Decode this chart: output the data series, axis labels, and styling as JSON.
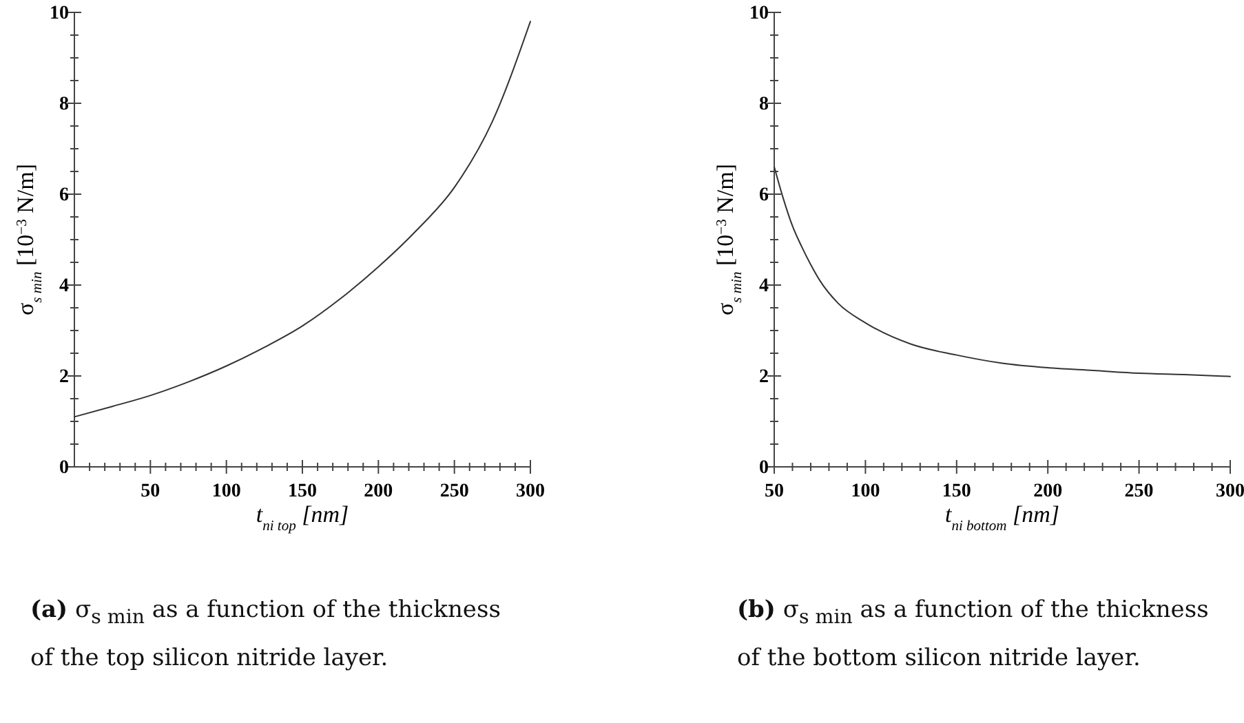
{
  "chart_data": [
    {
      "type": "line",
      "xlabel": "t$_{ni top}$ [nm]",
      "ylabel": "σ$_{s min}$   [10$^{−3}$ N/m]",
      "xlim": [
        0,
        300
      ],
      "ylim": [
        0,
        10
      ],
      "xticks": [
        {
          "value": 10,
          "label": null
        },
        {
          "value": 20,
          "label": null
        },
        {
          "value": 30,
          "label": null
        },
        {
          "value": 40,
          "label": null
        },
        50,
        {
          "value": 60,
          "label": null
        },
        {
          "value": 70,
          "label": null
        },
        {
          "value": 80,
          "label": null
        },
        {
          "value": 90,
          "label": null
        },
        100,
        {
          "value": 110,
          "label": null
        },
        {
          "value": 120,
          "label": null
        },
        {
          "value": 130,
          "label": null
        },
        {
          "value": 140,
          "label": null
        },
        150,
        {
          "value": 160,
          "label": null
        },
        {
          "value": 170,
          "label": null
        },
        {
          "value": 180,
          "label": null
        },
        {
          "value": 190,
          "label": null
        },
        200,
        {
          "value": 210,
          "label": null
        },
        {
          "value": 220,
          "label": null
        },
        {
          "value": 230,
          "label": null
        },
        {
          "value": 240,
          "label": null
        },
        250,
        {
          "value": 260,
          "label": null
        },
        {
          "value": 270,
          "label": null
        },
        {
          "value": 280,
          "label": null
        },
        {
          "value": 290,
          "label": null
        },
        300
      ],
      "yticks": [
        0,
        {
          "value": 0.5,
          "label": null
        },
        {
          "value": 1,
          "label": null
        },
        {
          "value": 1.5,
          "label": null
        },
        2,
        {
          "value": 2.5,
          "label": null
        },
        {
          "value": 3,
          "label": null
        },
        {
          "value": 3.5,
          "label": null
        },
        4,
        {
          "value": 4.5,
          "label": null
        },
        {
          "value": 5,
          "label": null
        },
        {
          "value": 5.5,
          "label": null
        },
        6,
        {
          "value": 6.5,
          "label": null
        },
        {
          "value": 7,
          "label": null
        },
        {
          "value": 7.5,
          "label": null
        },
        8,
        {
          "value": 8.5,
          "label": null
        },
        {
          "value": 9,
          "label": null
        },
        {
          "value": 9.5,
          "label": null
        },
        10
      ],
      "grid": false,
      "series": [
        {
          "color": "#333333",
          "x": [
            0,
            25,
            50,
            75,
            100,
            125,
            150,
            175,
            200,
            225,
            250,
            275,
            300
          ],
          "values": [
            1.1,
            1.33,
            1.57,
            1.87,
            2.22,
            2.63,
            3.1,
            3.7,
            4.4,
            5.2,
            6.15,
            7.6,
            9.8
          ]
        }
      ],
      "annotations": [
        "(a) σ$_{s min}$ as a function of the thickness of the top silicon nitride layer."
      ]
    },
    {
      "type": "line",
      "xlabel": "t$_{ni bottom}$   [nm]",
      "ylabel": "σ$_{s min}$   [10$^{−3}$ N/m]",
      "xlim": [
        50,
        300
      ],
      "ylim": [
        0,
        10
      ],
      "xticks": [
        50,
        {
          "value": 60,
          "label": null
        },
        {
          "value": 70,
          "label": null
        },
        {
          "value": 80,
          "label": null
        },
        {
          "value": 90,
          "label": null
        },
        100,
        {
          "value": 110,
          "label": null
        },
        {
          "value": 120,
          "label": null
        },
        {
          "value": 130,
          "label": null
        },
        {
          "value": 140,
          "label": null
        },
        150,
        {
          "value": 160,
          "label": null
        },
        {
          "value": 170,
          "label": null
        },
        {
          "value": 180,
          "label": null
        },
        {
          "value": 190,
          "label": null
        },
        200,
        {
          "value": 210,
          "label": null
        },
        {
          "value": 220,
          "label": null
        },
        {
          "value": 230,
          "label": null
        },
        {
          "value": 240,
          "label": null
        },
        250,
        {
          "value": 260,
          "label": null
        },
        {
          "value": 270,
          "label": null
        },
        {
          "value": 280,
          "label": null
        },
        {
          "value": 290,
          "label": null
        },
        300
      ],
      "yticks": [
        0,
        {
          "value": 0.5,
          "label": null
        },
        {
          "value": 1,
          "label": null
        },
        {
          "value": 1.5,
          "label": null
        },
        2,
        {
          "value": 2.5,
          "label": null
        },
        {
          "value": 3,
          "label": null
        },
        {
          "value": 3.5,
          "label": null
        },
        4,
        {
          "value": 4.5,
          "label": null
        },
        {
          "value": 5,
          "label": null
        },
        {
          "value": 5.5,
          "label": null
        },
        6,
        {
          "value": 6.5,
          "label": null
        },
        {
          "value": 7,
          "label": null
        },
        {
          "value": 7.5,
          "label": null
        },
        8,
        {
          "value": 8.5,
          "label": null
        },
        {
          "value": 9,
          "label": null
        },
        {
          "value": 9.5,
          "label": null
        },
        10
      ],
      "grid": false,
      "series": [
        {
          "color": "#333333",
          "x": [
            50,
            55,
            60,
            65,
            70,
            75,
            85,
            100,
            125,
            150,
            175,
            200,
            225,
            250,
            275,
            300
          ],
          "values": [
            6.6,
            5.9,
            5.3,
            4.85,
            4.45,
            4.1,
            3.6,
            3.17,
            2.7,
            2.46,
            2.28,
            2.18,
            2.12,
            2.06,
            2.03,
            1.99
          ]
        }
      ],
      "annotations": [
        "(b) σ$_{s min}$ as a function of the thickness of the bottom silicon nitride layer."
      ]
    }
  ]
}
